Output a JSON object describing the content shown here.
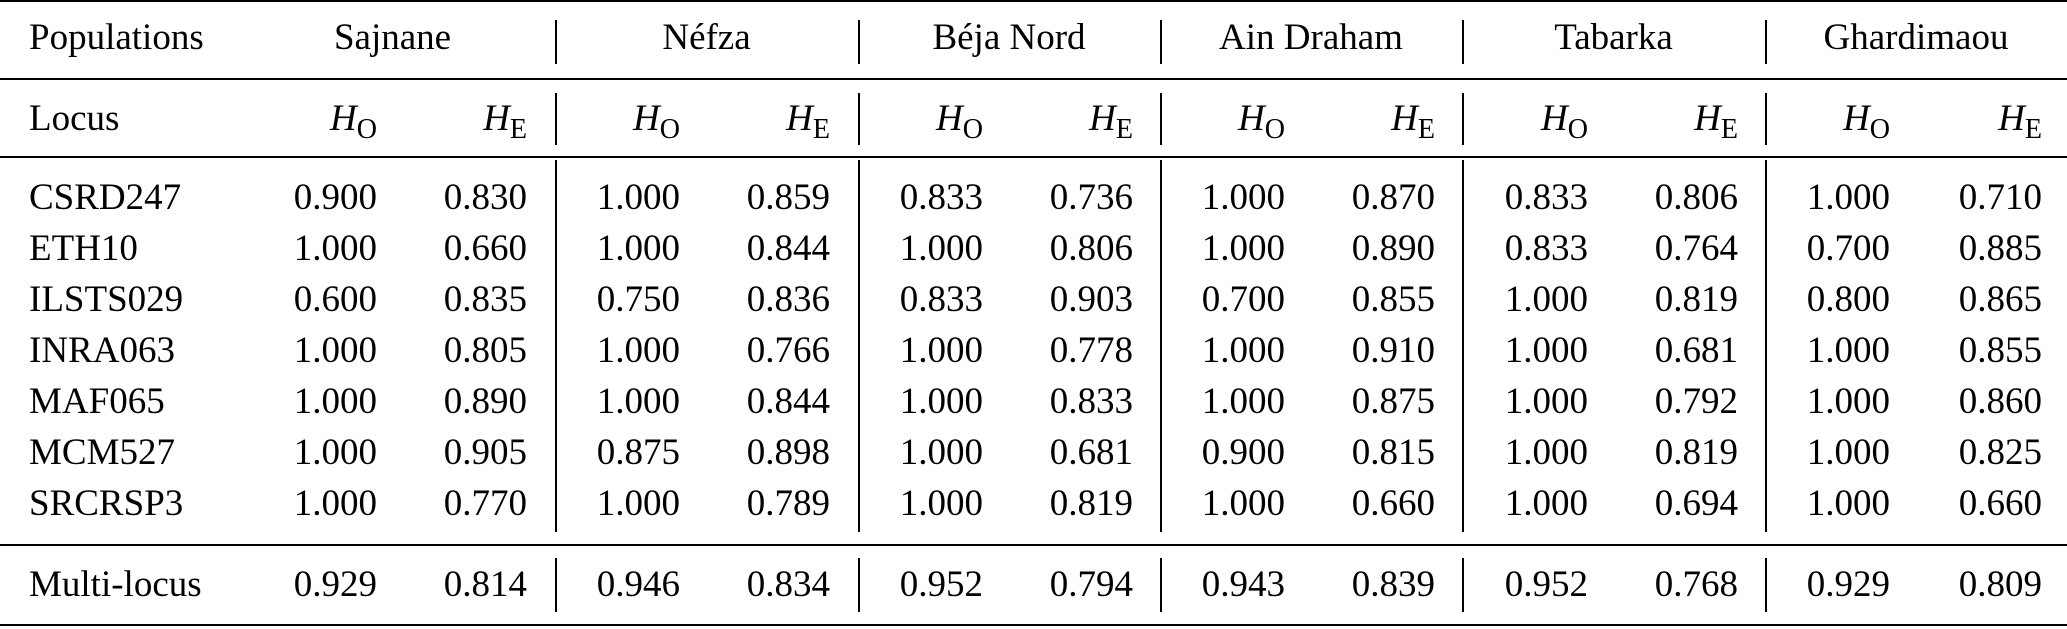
{
  "table": {
    "corner_header": "Populations",
    "locus_header": "Locus",
    "populations": [
      "Sajnane",
      "Néfza",
      "Béja Nord",
      "Ain Draham",
      "Tabarka",
      "Ghardimaou"
    ],
    "sub_headers": {
      "ho": {
        "letter": "H",
        "subscript": "O"
      },
      "he": {
        "letter": "H",
        "subscript": "E"
      }
    },
    "rows": [
      {
        "locus": "CSRD247",
        "values": [
          "0.900",
          "0.830",
          "1.000",
          "0.859",
          "0.833",
          "0.736",
          "1.000",
          "0.870",
          "0.833",
          "0.806",
          "1.000",
          "0.710"
        ]
      },
      {
        "locus": "ETH10",
        "values": [
          "1.000",
          "0.660",
          "1.000",
          "0.844",
          "1.000",
          "0.806",
          "1.000",
          "0.890",
          "0.833",
          "0.764",
          "0.700",
          "0.885"
        ]
      },
      {
        "locus": "ILSTS029",
        "values": [
          "0.600",
          "0.835",
          "0.750",
          "0.836",
          "0.833",
          "0.903",
          "0.700",
          "0.855",
          "1.000",
          "0.819",
          "0.800",
          "0.865"
        ]
      },
      {
        "locus": "INRA063",
        "values": [
          "1.000",
          "0.805",
          "1.000",
          "0.766",
          "1.000",
          "0.778",
          "1.000",
          "0.910",
          "1.000",
          "0.681",
          "1.000",
          "0.855"
        ]
      },
      {
        "locus": "MAF065",
        "values": [
          "1.000",
          "0.890",
          "1.000",
          "0.844",
          "1.000",
          "0.833",
          "1.000",
          "0.875",
          "1.000",
          "0.792",
          "1.000",
          "0.860"
        ]
      },
      {
        "locus": "MCM527",
        "values": [
          "1.000",
          "0.905",
          "0.875",
          "0.898",
          "1.000",
          "0.681",
          "0.900",
          "0.815",
          "1.000",
          "0.819",
          "1.000",
          "0.825"
        ]
      },
      {
        "locus": "SRCRSP3",
        "values": [
          "1.000",
          "0.770",
          "1.000",
          "0.789",
          "1.000",
          "0.819",
          "1.000",
          "0.660",
          "1.000",
          "0.694",
          "1.000",
          "0.660"
        ]
      }
    ],
    "summary": {
      "locus": "Multi-locus",
      "values": [
        "0.929",
        "0.814",
        "0.946",
        "0.834",
        "0.952",
        "0.794",
        "0.943",
        "0.839",
        "0.952",
        "0.768",
        "0.929",
        "0.809"
      ]
    }
  }
}
